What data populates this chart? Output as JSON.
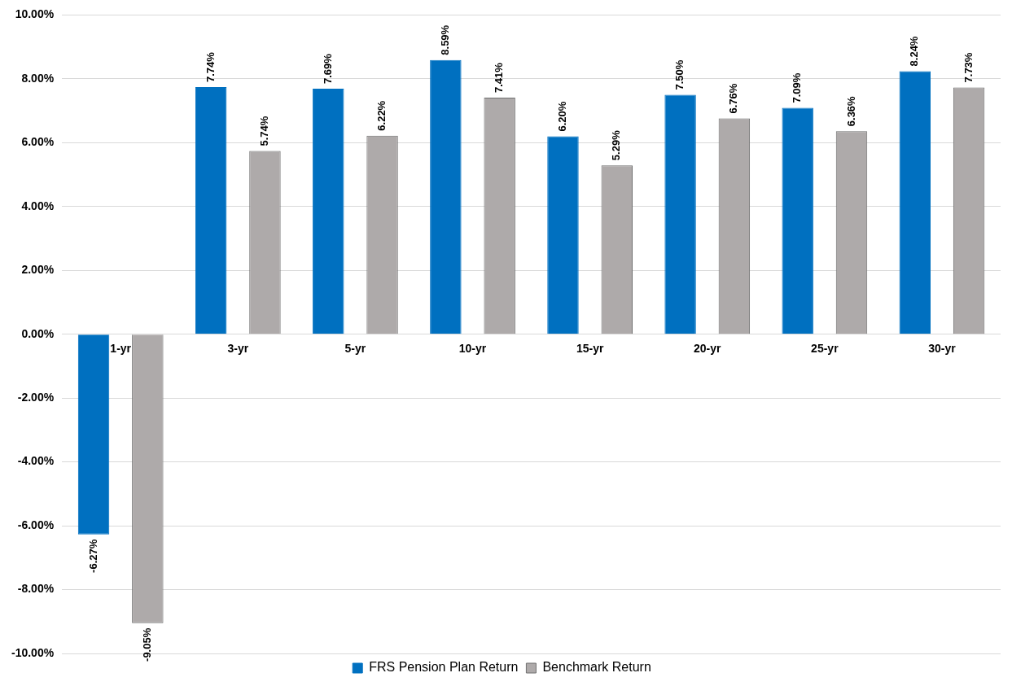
{
  "chart_data": {
    "type": "bar",
    "categories": [
      "1-yr",
      "3-yr",
      "5-yr",
      "10-yr",
      "15-yr",
      "20-yr",
      "25-yr",
      "30-yr"
    ],
    "series": [
      {
        "name": "FRS Pension Plan Return",
        "color": "#0070c0",
        "values": [
          -6.27,
          7.74,
          7.69,
          8.59,
          6.2,
          7.5,
          7.09,
          8.24
        ],
        "value_labels": [
          "-6.27%",
          "7.74%",
          "7.69%",
          "8.59%",
          "6.20%",
          "7.50%",
          "7.09%",
          "8.24%"
        ]
      },
      {
        "name": "Benchmark Return",
        "color": "#aeaaaa",
        "values": [
          -9.05,
          5.74,
          6.22,
          7.41,
          5.29,
          6.76,
          6.36,
          7.73
        ],
        "value_labels": [
          "-9.05%",
          "5.74%",
          "6.22%",
          "7.41%",
          "5.29%",
          "6.76%",
          "6.36%",
          "7.73%"
        ]
      }
    ],
    "ylim": [
      -10,
      10
    ],
    "yticks": [
      {
        "value": -10,
        "label": "-10.00%"
      },
      {
        "value": -8,
        "label": "-8.00%"
      },
      {
        "value": -6,
        "label": "-6.00%"
      },
      {
        "value": -4,
        "label": "-4.00%"
      },
      {
        "value": -2,
        "label": "-2.00%"
      },
      {
        "value": 0,
        "label": "0.00%"
      },
      {
        "value": 2,
        "label": "2.00%"
      },
      {
        "value": 4,
        "label": "4.00%"
      },
      {
        "value": 6,
        "label": "6.00%"
      },
      {
        "value": 8,
        "label": "8.00%"
      },
      {
        "value": 10,
        "label": "10.00%"
      }
    ],
    "grid": "y",
    "legend": "bottom"
  }
}
